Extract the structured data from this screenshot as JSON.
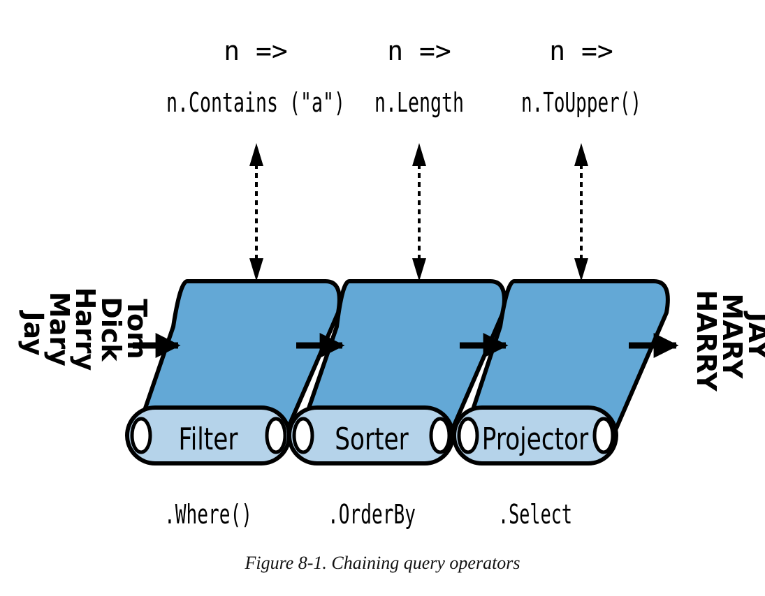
{
  "input": [
    "Tom",
    "Dick",
    "Harry",
    "Mary",
    "Jay"
  ],
  "output": [
    "JAY",
    "MARY",
    "HARRY"
  ],
  "stages": [
    {
      "name": "Filter",
      "operator": ".Where()",
      "lambda_line1": "n =>",
      "lambda_line2": "n.Contains (\"a\")"
    },
    {
      "name": "Sorter",
      "operator": ".OrderBy",
      "lambda_line1": "n =>",
      "lambda_line2": "n.Length"
    },
    {
      "name": "Projector",
      "operator": ".Select",
      "lambda_line1": "n =>",
      "lambda_line2": "n.ToUpper()"
    }
  ],
  "caption": "Figure 8-1. Chaining query operators",
  "colors": {
    "belt": "#63a8d6",
    "roller": "#b5d3ea",
    "outline": "#000000"
  }
}
